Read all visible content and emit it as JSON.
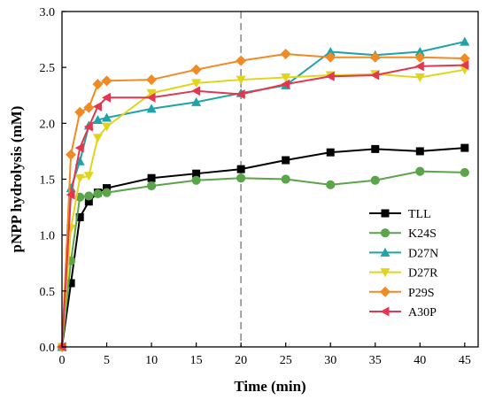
{
  "chart_data": {
    "type": "line",
    "title": "",
    "xlabel": "Time (min)",
    "ylabel": "pNPP hydrolysis (mM)",
    "xlim": [
      0,
      46.5
    ],
    "ylim": [
      0,
      3.0
    ],
    "xticks": [
      0,
      5,
      10,
      15,
      20,
      25,
      30,
      35,
      40,
      45
    ],
    "xtick_labels": [
      "0",
      "5",
      "10",
      "15",
      "20",
      "25",
      "30",
      "35",
      "40",
      "45"
    ],
    "yticks": [
      0,
      0.5,
      1.0,
      1.5,
      2.0,
      2.5,
      3.0
    ],
    "ytick_labels": [
      "0.0",
      "0.5",
      "1.0",
      "1.5",
      "2.0",
      "2.5",
      "3.0"
    ],
    "reference_line": {
      "x": 20,
      "style": "dashed",
      "color": "#999999"
    },
    "grid": false,
    "legend_position": "right",
    "series": [
      {
        "name": "TLL",
        "color": "#000000",
        "marker": "square",
        "points": [
          [
            0,
            0
          ],
          [
            1,
            0.57
          ],
          [
            2,
            1.16
          ],
          [
            3,
            1.3
          ],
          [
            4,
            1.38
          ],
          [
            5,
            1.42
          ],
          [
            10,
            1.51
          ],
          [
            15,
            1.55
          ],
          [
            20,
            1.59
          ],
          [
            25,
            1.67
          ],
          [
            30,
            1.74
          ],
          [
            35,
            1.77
          ],
          [
            40,
            1.75
          ],
          [
            45,
            1.78
          ]
        ]
      },
      {
        "name": "K24S",
        "color": "#5BA44A",
        "marker": "circle",
        "points": [
          [
            0,
            0
          ],
          [
            1,
            0.77
          ],
          [
            2,
            1.34
          ],
          [
            3,
            1.35
          ],
          [
            4,
            1.37
          ],
          [
            5,
            1.38
          ],
          [
            10,
            1.44
          ],
          [
            15,
            1.49
          ],
          [
            20,
            1.51
          ],
          [
            25,
            1.5
          ],
          [
            30,
            1.45
          ],
          [
            35,
            1.49
          ],
          [
            40,
            1.57
          ],
          [
            45,
            1.56
          ]
        ]
      },
      {
        "name": "D27N",
        "color": "#1FA2A8",
        "marker": "triangle-up",
        "points": [
          [
            0,
            0
          ],
          [
            1,
            1.42
          ],
          [
            2,
            1.66
          ],
          [
            3,
            1.98
          ],
          [
            4,
            2.03
          ],
          [
            5,
            2.05
          ],
          [
            10,
            2.13
          ],
          [
            15,
            2.19
          ],
          [
            20,
            2.27
          ],
          [
            25,
            2.34
          ],
          [
            30,
            2.64
          ],
          [
            35,
            2.61
          ],
          [
            40,
            2.64
          ],
          [
            45,
            2.73
          ]
        ]
      },
      {
        "name": "D27R",
        "color": "#E0D51C",
        "marker": "triangle-down",
        "points": [
          [
            0,
            0
          ],
          [
            1,
            1.06
          ],
          [
            2,
            1.51
          ],
          [
            3,
            1.53
          ],
          [
            4,
            1.87
          ],
          [
            5,
            1.97
          ],
          [
            10,
            2.27
          ],
          [
            15,
            2.36
          ],
          [
            20,
            2.39
          ],
          [
            25,
            2.41
          ],
          [
            30,
            2.43
          ],
          [
            35,
            2.44
          ],
          [
            40,
            2.41
          ],
          [
            45,
            2.48
          ]
        ]
      },
      {
        "name": "P29S",
        "color": "#F08A24",
        "marker": "diamond",
        "points": [
          [
            0,
            0
          ],
          [
            1,
            1.72
          ],
          [
            2,
            2.1
          ],
          [
            3,
            2.14
          ],
          [
            4,
            2.35
          ],
          [
            5,
            2.38
          ],
          [
            10,
            2.39
          ],
          [
            15,
            2.48
          ],
          [
            20,
            2.56
          ],
          [
            25,
            2.62
          ],
          [
            30,
            2.59
          ],
          [
            35,
            2.59
          ],
          [
            40,
            2.59
          ],
          [
            45,
            2.58
          ]
        ]
      },
      {
        "name": "A30P",
        "color": "#E3364F",
        "marker": "triangle-left",
        "points": [
          [
            0,
            0
          ],
          [
            1,
            1.36
          ],
          [
            2,
            1.78
          ],
          [
            3,
            1.97
          ],
          [
            4,
            2.15
          ],
          [
            5,
            2.23
          ],
          [
            10,
            2.23
          ],
          [
            15,
            2.29
          ],
          [
            20,
            2.26
          ],
          [
            25,
            2.35
          ],
          [
            30,
            2.42
          ],
          [
            35,
            2.43
          ],
          [
            40,
            2.51
          ],
          [
            45,
            2.52
          ]
        ]
      }
    ]
  }
}
